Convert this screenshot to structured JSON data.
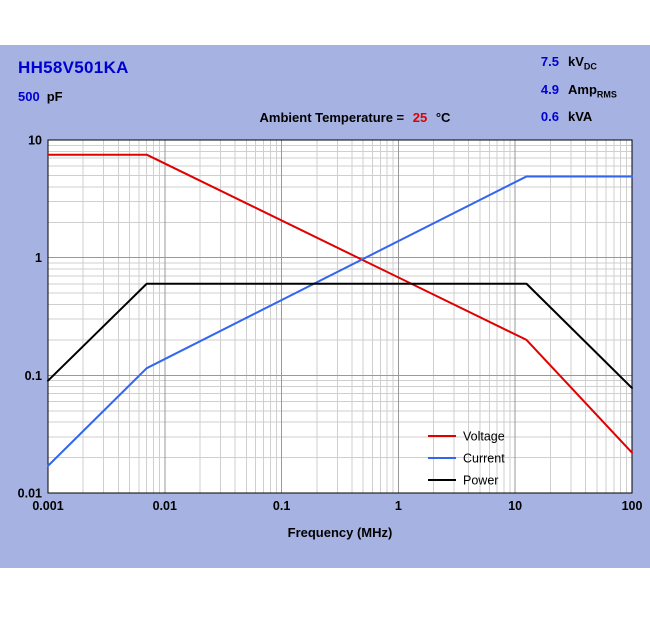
{
  "header": {
    "part_number": "HH58V501KA",
    "capacitance_value": "500",
    "capacitance_unit": "pF",
    "ratings": [
      {
        "value": "7.5",
        "unit": "kV",
        "unit_sub": "DC"
      },
      {
        "value": "4.9",
        "unit": "Amp",
        "unit_sub": "RMS"
      },
      {
        "value": "0.6",
        "unit": "kVA",
        "unit_sub": ""
      }
    ],
    "ambient_label": "Ambient Temperature =",
    "ambient_value": "25",
    "ambient_unit": "°C"
  },
  "colors": {
    "panel_background": "#a6b3e2",
    "brand_blue": "#0000d2",
    "accent_red": "#e00000",
    "plot_background": "#ffffff",
    "grid_minor": "#cfcfcf",
    "grid_major": "#999999",
    "plot_border": "#000000"
  },
  "chart_data": {
    "type": "line",
    "title": "",
    "xlabel": "Frequency (MHz)",
    "ylabel": "",
    "xscale": "log",
    "yscale": "log",
    "xlim": [
      0.001,
      100
    ],
    "ylim": [
      0.01,
      10
    ],
    "x_ticks": [
      "0.001",
      "0.01",
      "0.1",
      "1",
      "10",
      "100"
    ],
    "y_ticks": [
      "0.01",
      "0.1",
      "1",
      "10"
    ],
    "grid": true,
    "legend_position": "inside lower right",
    "series": [
      {
        "name": "Voltage",
        "color": "#e00000",
        "points": [
          [
            0.001,
            7.5
          ],
          [
            0.007,
            7.5
          ],
          [
            12.5,
            0.2
          ],
          [
            100,
            0.022
          ]
        ]
      },
      {
        "name": "Current",
        "color": "#3366ee",
        "points": [
          [
            0.001,
            0.017
          ],
          [
            0.007,
            0.115
          ],
          [
            12.5,
            4.9
          ],
          [
            100,
            4.9
          ]
        ]
      },
      {
        "name": "Power",
        "color": "#000000",
        "points": [
          [
            0.001,
            0.09
          ],
          [
            0.007,
            0.6
          ],
          [
            12.5,
            0.6
          ],
          [
            100,
            0.078
          ]
        ]
      }
    ]
  }
}
